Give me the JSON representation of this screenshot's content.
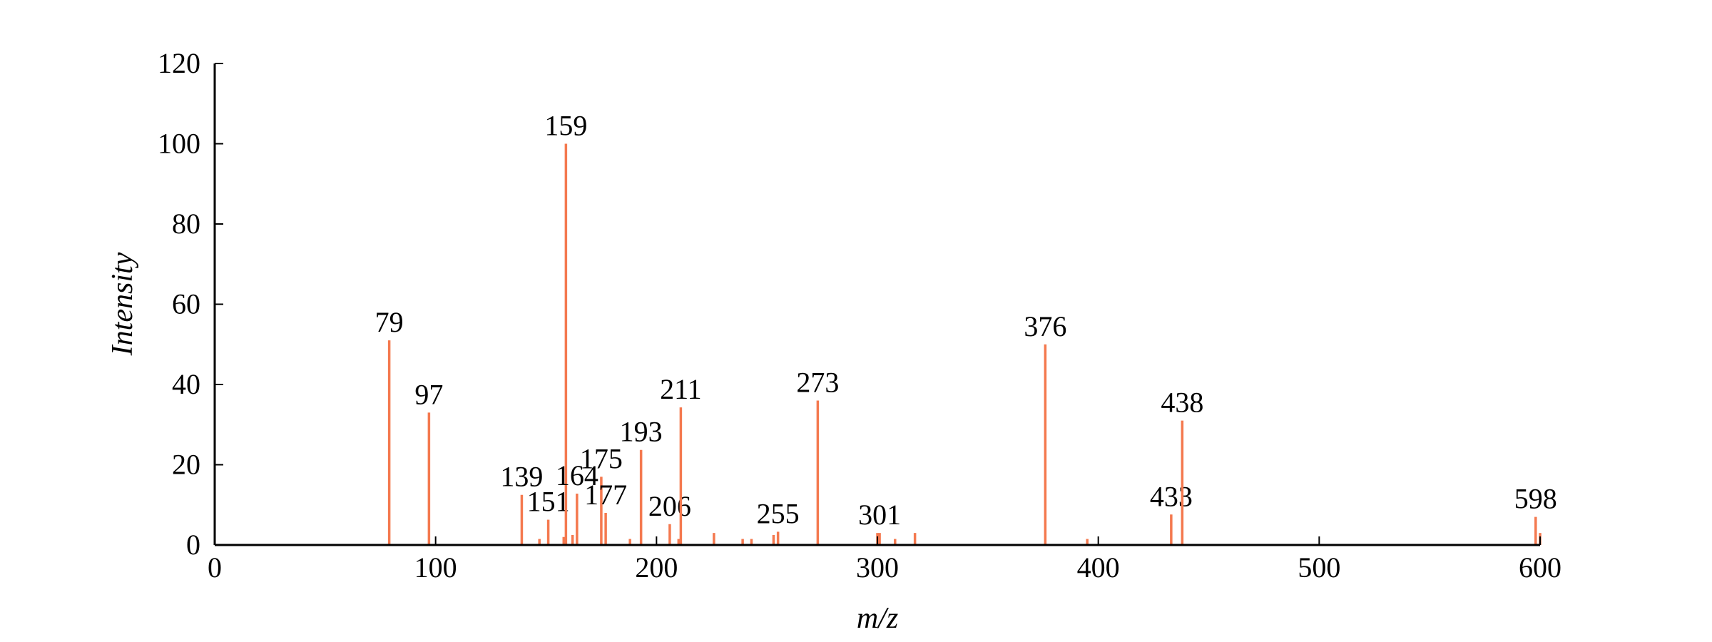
{
  "chart_data": {
    "type": "stem",
    "x_label": "m/z",
    "y_label": "Intensity",
    "color": "#f4794f",
    "xlim": [
      0,
      600
    ],
    "ylim": [
      0,
      120
    ],
    "xticks": [
      0,
      100,
      200,
      300,
      400,
      500,
      600
    ],
    "yticks": [
      0,
      20,
      40,
      60,
      80,
      100,
      120
    ],
    "x": [
      79,
      97,
      139,
      147,
      151,
      158,
      159,
      162,
      164,
      175,
      177,
      188,
      193,
      206,
      210,
      211,
      226,
      239,
      243,
      253,
      255,
      273,
      300,
      301,
      308,
      317,
      376,
      395,
      433,
      438,
      598,
      600
    ],
    "values": [
      51,
      33,
      12.5,
      1.5,
      6.3,
      2,
      100,
      2.5,
      12.8,
      17,
      8,
      1.5,
      23.7,
      5.2,
      1.5,
      34.3,
      3,
      1.5,
      1.5,
      2.5,
      3.3,
      36,
      3,
      3,
      1.5,
      3,
      50,
      1.5,
      7.6,
      31,
      7,
      3
    ],
    "peak_labels": [
      "79",
      "97",
      "139",
      null,
      "151",
      null,
      "159",
      null,
      "164",
      "175",
      "177",
      null,
      "193",
      "206",
      null,
      "211",
      null,
      null,
      null,
      null,
      "255",
      "273",
      null,
      "301",
      null,
      null,
      "376",
      null,
      "433",
      "438",
      "598",
      null
    ]
  }
}
